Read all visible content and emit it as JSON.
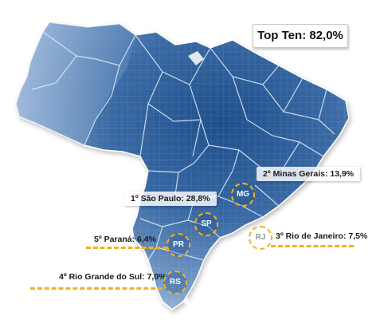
{
  "summary": {
    "top_ten": "Top Ten: 82,0%"
  },
  "states": {
    "mg": {
      "label": "2º Minas Gerais: 13,9%",
      "badge": "MG"
    },
    "sp": {
      "label": "1º São Paulo: 28,8%",
      "badge": "SP"
    },
    "rj": {
      "label": "3º Rio de Janeiro: 7,5%",
      "badge": "RJ"
    },
    "pr": {
      "label": "5º Paraná: 6,4%",
      "badge": "PR"
    },
    "rs": {
      "label": "4º Rio Grande do Sul: 7,0%",
      "badge": "RS"
    }
  },
  "colors": {
    "ocean": "#ffffff",
    "land_dark": "#1f4f8a",
    "land_light": "#a8c1df",
    "borders": "#dce7f3",
    "accent_dashed": "#f2b21b"
  }
}
